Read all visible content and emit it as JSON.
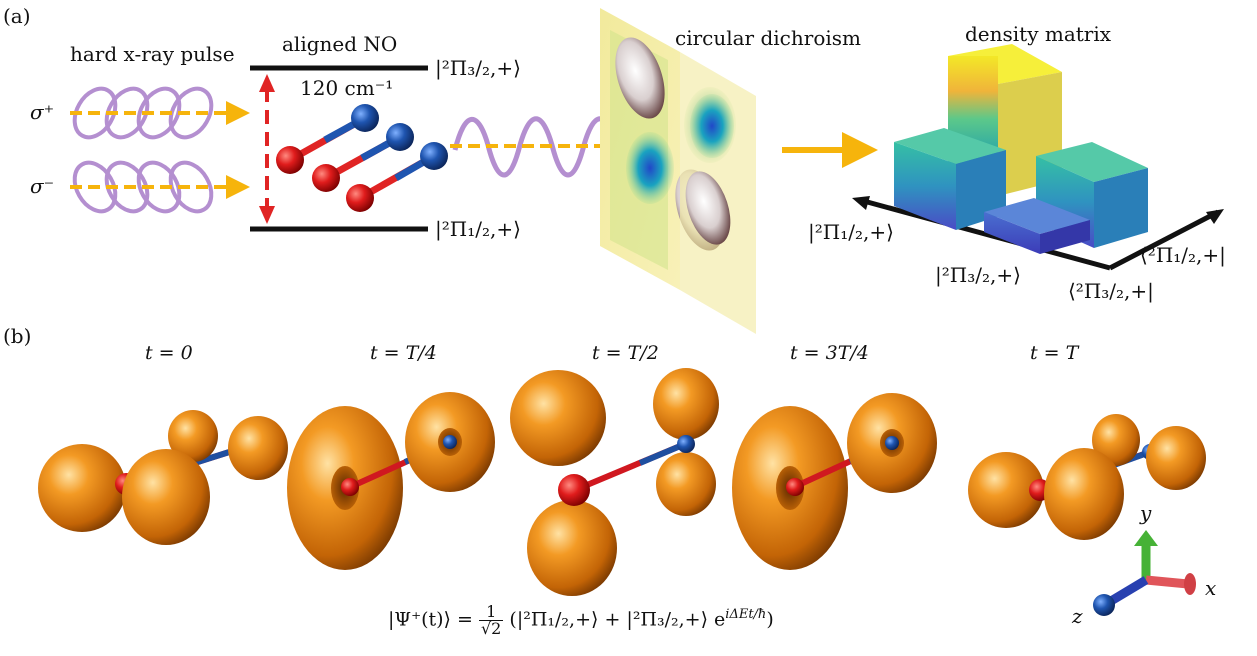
{
  "panel_a": {
    "label": "(a)",
    "pulse_title": "hard x-ray pulse",
    "sigma_plus": "σ⁺",
    "sigma_minus": "σ⁻",
    "molecule_title": "aligned NO",
    "splitting": "120 cm⁻¹",
    "level_upper_ket": "|²Π₃/₂,+⟩",
    "level_lower_ket": "|²Π₁/₂,+⟩",
    "cd_title": "circular dichroism",
    "dm_title": "density matrix",
    "dm_axis_left_1": "|²Π₁/₂,+⟩",
    "dm_axis_left_2": "|²Π₃/₂,+⟩",
    "dm_axis_right_1": "⟨²Π₁/₂,+|",
    "dm_axis_right_2": "⟨²Π₃/₂,+|"
  },
  "panel_b": {
    "label": "(b)",
    "times": [
      "t = 0",
      "t = T/4",
      "t = T/2",
      "t = 3T/4",
      "t = T"
    ],
    "formula_lhs": "|Ψ⁺(t)⟩ =",
    "formula_num": "1",
    "formula_den": "√2",
    "formula_rhs": "(|²Π₁/₂,+⟩ + |²Π₃/₂,+⟩ e",
    "formula_exp": "iΔEt/ħ",
    "formula_close": ")",
    "axes": {
      "x": "x",
      "y": "y",
      "z": "z"
    }
  },
  "colors": {
    "arrow_orange": "#f6b40c",
    "wave_purple": "#b48fd0",
    "oxygen_red": "#d01820",
    "nitrogen_blue": "#1f4fa0",
    "orbital_orange": "#e07e14",
    "level_red": "#e02424"
  }
}
